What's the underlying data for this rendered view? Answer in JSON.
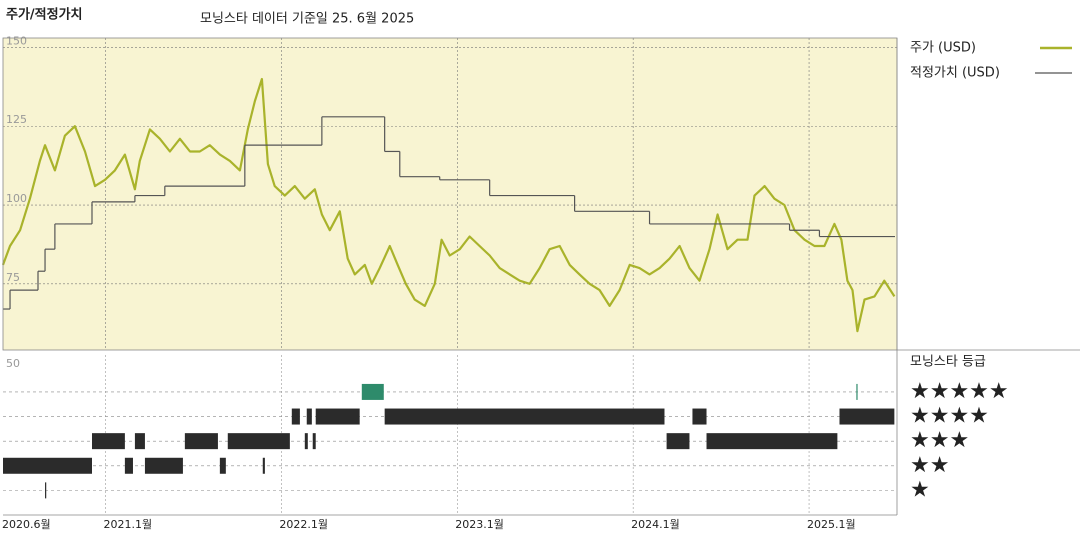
{
  "chart_data": [
    {
      "type": "line",
      "title": "주가/적정가치",
      "subtitle": "모닝스타 데이터 기준일 25. 6월 2025",
      "xlim": [
        2020.417,
        2025.5
      ],
      "xticks": [
        {
          "value": 2020.417,
          "label": "2020.6월"
        },
        {
          "value": 2021.0,
          "label": "2021.1월"
        },
        {
          "value": 2022.0,
          "label": "2022.1월"
        },
        {
          "value": 2023.0,
          "label": "2023.1월"
        },
        {
          "value": 2024.0,
          "label": "2024.1월"
        },
        {
          "value": 2025.0,
          "label": "2025.1월"
        }
      ],
      "ylim": [
        54,
        153
      ],
      "yticks": [
        75,
        100,
        125,
        150
      ],
      "grid": true,
      "background": "#f8f4d2",
      "series": [
        {
          "name": "주가 (USD)",
          "color": "#a9b32b",
          "x": [
            2020.417,
            2020.457,
            2020.514,
            2020.57,
            2020.627,
            2020.656,
            2020.712,
            2020.769,
            2020.826,
            2020.883,
            2020.94,
            2020.997,
            2021.053,
            2021.11,
            2021.167,
            2021.195,
            2021.252,
            2021.309,
            2021.366,
            2021.423,
            2021.48,
            2021.536,
            2021.593,
            2021.65,
            2021.707,
            2021.764,
            2021.809,
            2021.849,
            2021.889,
            2021.923,
            2021.962,
            2022.019,
            2022.076,
            2022.133,
            2022.19,
            2022.23,
            2022.275,
            2022.332,
            2022.377,
            2022.417,
            2022.474,
            2022.514,
            2022.559,
            2022.616,
            2022.661,
            2022.707,
            2022.758,
            2022.815,
            2022.872,
            2022.911,
            2022.957,
            2023.014,
            2023.07,
            2023.127,
            2023.184,
            2023.241,
            2023.298,
            2023.355,
            2023.411,
            2023.468,
            2023.525,
            2023.582,
            2023.639,
            2023.695,
            2023.752,
            2023.809,
            2023.866,
            2023.923,
            2023.98,
            2024.036,
            2024.093,
            2024.15,
            2024.207,
            2024.264,
            2024.32,
            2024.377,
            2024.434,
            2024.48,
            2024.536,
            2024.593,
            2024.65,
            2024.69,
            2024.747,
            2024.803,
            2024.86,
            2024.917,
            2024.974,
            2025.031,
            2025.087,
            2025.144,
            2025.184,
            2025.218,
            2025.247,
            2025.275,
            2025.315,
            2025.372,
            2025.428,
            2025.485
          ],
          "values": [
            81,
            87,
            92,
            102,
            114,
            119,
            111,
            122,
            125,
            117,
            106,
            108,
            111,
            116,
            105,
            114,
            124,
            121,
            117,
            121,
            117,
            117,
            119,
            116,
            114,
            111,
            124,
            133,
            140,
            113,
            106,
            103,
            106,
            102,
            105,
            97,
            92,
            98,
            83,
            78,
            81,
            75,
            80,
            87,
            81,
            75,
            70,
            68,
            75,
            89,
            84,
            86,
            90,
            87,
            84,
            80,
            78,
            76,
            75,
            80,
            86,
            87,
            81,
            78,
            75,
            73,
            68,
            73,
            81,
            80,
            78,
            80,
            83,
            87,
            80,
            76,
            86,
            97,
            86,
            89,
            89,
            103,
            106,
            102,
            100,
            92,
            89,
            87,
            87,
            94,
            89,
            76,
            73,
            60,
            70,
            71,
            76,
            71
          ]
        },
        {
          "name": "적정가치 (USD)",
          "color": "#555555",
          "step": "post",
          "x": [
            2020.417,
            2020.457,
            2020.616,
            2020.656,
            2020.712,
            2020.923,
            2021.167,
            2021.337,
            2021.792,
            2022.23,
            2022.587,
            2022.673,
            2022.9,
            2023.184,
            2023.667,
            2024.093,
            2024.889,
            2025.059
          ],
          "values": [
            67,
            73,
            79,
            86,
            94,
            101,
            103,
            106,
            119,
            128,
            117,
            109,
            108,
            103,
            98,
            94,
            92,
            90
          ]
        }
      ]
    },
    {
      "type": "rating",
      "title": "모닝스타 등급",
      "label": "50",
      "ylim": [
        0,
        6.5
      ],
      "levels": [
        5,
        4,
        3,
        2,
        1
      ],
      "level_labels": [
        "★★★★★",
        "★★★★",
        "★★★",
        "★★",
        "★"
      ],
      "color": "#2b2b2b",
      "top_color": "#2e8b6b",
      "segments": [
        {
          "from": 2020.417,
          "to": 2020.923,
          "stars": 2
        },
        {
          "from": 2020.656,
          "to": 2020.661,
          "stars": 1
        },
        {
          "from": 2020.923,
          "to": 2021.11,
          "stars": 3
        },
        {
          "from": 2021.11,
          "to": 2021.156,
          "stars": 2
        },
        {
          "from": 2021.167,
          "to": 2021.224,
          "stars": 3
        },
        {
          "from": 2021.224,
          "to": 2021.44,
          "stars": 2
        },
        {
          "from": 2021.451,
          "to": 2021.639,
          "stars": 3
        },
        {
          "from": 2021.65,
          "to": 2021.684,
          "stars": 2
        },
        {
          "from": 2021.695,
          "to": 2022.048,
          "stars": 3
        },
        {
          "from": 2021.894,
          "to": 2021.906,
          "stars": 2
        },
        {
          "from": 2022.059,
          "to": 2022.105,
          "stars": 4
        },
        {
          "from": 2022.133,
          "to": 2022.15,
          "stars": 3
        },
        {
          "from": 2022.144,
          "to": 2022.173,
          "stars": 4
        },
        {
          "from": 2022.178,
          "to": 2022.195,
          "stars": 3
        },
        {
          "from": 2022.195,
          "to": 2022.445,
          "stars": 4
        },
        {
          "from": 2022.457,
          "to": 2022.582,
          "stars": 5
        },
        {
          "from": 2022.587,
          "to": 2024.178,
          "stars": 4
        },
        {
          "from": 2024.19,
          "to": 2024.32,
          "stars": 3
        },
        {
          "from": 2024.337,
          "to": 2024.417,
          "stars": 4
        },
        {
          "from": 2024.417,
          "to": 2025.161,
          "stars": 3
        },
        {
          "from": 2025.173,
          "to": 2025.485,
          "stars": 4
        },
        {
          "from": 2025.269,
          "to": 2025.275,
          "stars": 5
        }
      ]
    }
  ]
}
